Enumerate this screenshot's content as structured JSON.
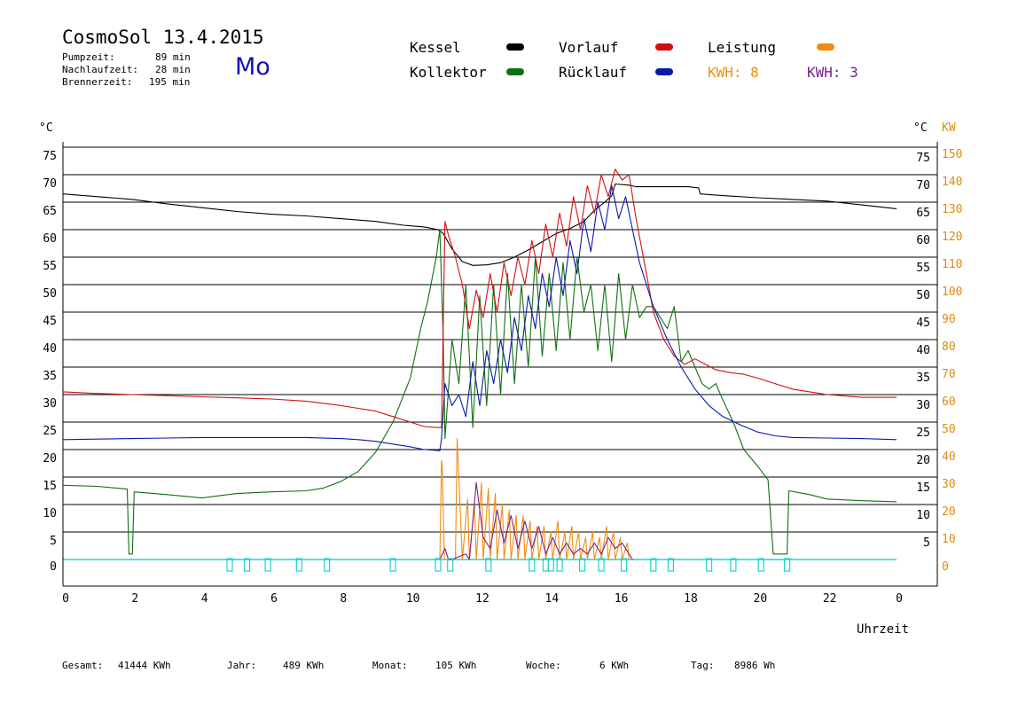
{
  "header": {
    "title": "CosmoSol 13.4.2015",
    "pump_label": "Pumpzeit:",
    "pump_value": "89 min",
    "follow_label": "Nachlaufzeit:",
    "follow_value": "28 min",
    "burner_label": "Brennerzeit:",
    "burner_value": "195 min",
    "weekday": "Mo"
  },
  "legend": {
    "kessel": "Kessel",
    "kollektor": "Kollektor",
    "vorlauf": "Vorlauf",
    "ruecklauf": "Rücklauf",
    "leistung": "Leistung",
    "kwh_orange": "KWH: 8",
    "kwh_purple": "KWH: 3"
  },
  "colors": {
    "kessel": "#000000",
    "kollektor": "#107010",
    "vorlauf": "#d01010",
    "ruecklauf": "#0a1aa8",
    "leistung": "#f08c10",
    "kwh_purple": "#7a2090",
    "baseline": "#20d0d0",
    "kw_axis": "#e08a10"
  },
  "footer": {
    "gesamt_label": "Gesamt:",
    "gesamt_value": "41444 KWh",
    "jahr_label": "Jahr:",
    "jahr_value": "489 KWh",
    "monat_label": "Monat:",
    "monat_value": "105 KWh",
    "woche_label": "Woche:",
    "woche_value": "6 KWh",
    "tag_label": "Tag:",
    "tag_value": "8986 Wh"
  },
  "chart_data": {
    "type": "line",
    "xlabel": "Uhrzeit",
    "ylabel_left": "°C",
    "ylabel_right_temp": "°C",
    "ylabel_right_power": "KW",
    "x_ticks": [
      "0",
      "2",
      "4",
      "6",
      "8",
      "10",
      "12",
      "14",
      "16",
      "18",
      "20",
      "22",
      "0"
    ],
    "xlim": [
      0,
      24
    ],
    "ylim": [
      0,
      80
    ],
    "y_ticks_left": [
      "0",
      "5",
      "10",
      "15",
      "20",
      "25",
      "30",
      "35",
      "40",
      "45",
      "50",
      "55",
      "60",
      "65",
      "70",
      "75"
    ],
    "y_ticks_right_temp": [
      "5",
      "10",
      "15",
      "20",
      "25",
      "30",
      "35",
      "40",
      "45",
      "50",
      "55",
      "60",
      "65",
      "70",
      "75"
    ],
    "y_ticks_right_power": [
      "0",
      "10",
      "20",
      "30",
      "40",
      "50",
      "60",
      "70",
      "80",
      "90",
      "100",
      "110",
      "120",
      "130",
      "140",
      "150"
    ],
    "grid": true,
    "series": [
      {
        "name": "Kessel",
        "x": [
          0,
          1,
          2,
          3,
          4,
          5,
          6,
          7,
          8,
          9,
          9.8,
          10.4,
          10.8,
          10.95,
          11.2,
          11.5,
          11.8,
          12.2,
          12.6,
          13.0,
          13.4,
          13.8,
          14.2,
          14.6,
          15.0,
          15.3,
          15.6,
          15.8,
          15.9,
          16.3,
          16.5,
          17.0,
          17.5,
          18.0,
          18.3,
          18.35,
          19,
          20,
          21,
          22,
          23,
          24
        ],
        "y": [
          66.5,
          66,
          65.5,
          64.7,
          64,
          63.3,
          62.8,
          62.5,
          62,
          61.5,
          60.8,
          60.5,
          60,
          59.3,
          56.5,
          54.2,
          53.5,
          53.6,
          54,
          55,
          56.3,
          57.8,
          59.3,
          60.2,
          61.5,
          63.5,
          65,
          66.2,
          68.3,
          68.1,
          67.8,
          67.8,
          67.8,
          67.8,
          67.6,
          66.5,
          66.2,
          65.8,
          65.5,
          65.2,
          64.5,
          63.8
        ]
      },
      {
        "name": "Kollektor",
        "x": [
          0,
          1,
          1.85,
          1.9,
          2.0,
          2.05,
          3,
          4,
          5,
          6,
          7,
          7.5,
          8,
          8.5,
          9.0,
          9.5,
          10.0,
          10.3,
          10.5,
          10.75,
          10.85,
          10.95,
          11.0,
          11.2,
          11.4,
          11.6,
          11.8,
          12.0,
          12.2,
          12.4,
          12.6,
          12.8,
          13.0,
          13.2,
          13.4,
          13.6,
          13.8,
          14.0,
          14.2,
          14.4,
          14.6,
          14.8,
          15.0,
          15.2,
          15.4,
          15.6,
          15.8,
          16.0,
          16.2,
          16.4,
          16.6,
          16.8,
          17.0,
          17.2,
          17.4,
          17.6,
          17.8,
          18.0,
          18.2,
          18.4,
          18.6,
          18.8,
          19.0,
          19.3,
          19.6,
          20.0,
          20.3,
          20.45,
          20.5,
          20.85,
          20.9,
          21.5,
          22,
          23,
          24
        ],
        "y": [
          13.5,
          13.3,
          12.8,
          1,
          1,
          12.3,
          11.8,
          11.2,
          12.0,
          12.3,
          12.5,
          13.0,
          14.2,
          16.0,
          19.5,
          25,
          33,
          42,
          47,
          55,
          60,
          40,
          22,
          40,
          32,
          50,
          24,
          48,
          28,
          50,
          30,
          52,
          32,
          50,
          35,
          55,
          37,
          52,
          38,
          54,
          40,
          55,
          45,
          50,
          38,
          50,
          36,
          52,
          40,
          50,
          44,
          46,
          46,
          44,
          42,
          46,
          36,
          38,
          35,
          32,
          31,
          32,
          29,
          25,
          20,
          17,
          14.5,
          1,
          1,
          1,
          12.5,
          11.8,
          11.0,
          10.7,
          10.5
        ]
      },
      {
        "name": "Vorlauf",
        "x": [
          0,
          1,
          2,
          3,
          4,
          5,
          6,
          7,
          8,
          8.5,
          9.0,
          9.5,
          10.0,
          10.4,
          10.8,
          10.9,
          11.0,
          11.1,
          11.3,
          11.5,
          11.7,
          11.9,
          12.1,
          12.3,
          12.5,
          12.7,
          12.9,
          13.1,
          13.3,
          13.5,
          13.7,
          13.9,
          14.1,
          14.3,
          14.5,
          14.7,
          14.9,
          15.1,
          15.3,
          15.5,
          15.7,
          15.9,
          16.1,
          16.3,
          16.5,
          16.8,
          17.0,
          17.3,
          17.6,
          17.9,
          18.2,
          18.5,
          18.8,
          19.2,
          19.6,
          20,
          20.5,
          21,
          21.5,
          22,
          23,
          24
        ],
        "y": [
          30.5,
          30.2,
          30,
          29.8,
          29.6,
          29.4,
          29.2,
          28.8,
          28.0,
          27.5,
          27.0,
          26.0,
          25.0,
          24.2,
          24.0,
          24.0,
          61.5,
          59,
          55,
          50,
          42,
          49,
          44,
          52,
          45,
          54,
          48,
          55,
          50,
          58,
          52,
          61,
          55,
          63,
          57,
          66,
          60,
          68,
          63,
          70,
          66,
          71,
          69,
          70,
          62,
          52,
          45,
          40,
          37,
          35.5,
          36.5,
          35.5,
          34.5,
          34,
          33.7,
          33,
          32,
          31,
          30.5,
          30.0,
          29.5,
          29.5
        ]
      },
      {
        "name": "Rücklauf",
        "x": [
          0,
          1,
          2,
          3,
          4,
          5,
          6,
          7,
          8,
          8.5,
          9.0,
          9.5,
          10.0,
          10.4,
          10.85,
          10.9,
          11.0,
          11.2,
          11.4,
          11.6,
          11.8,
          12.0,
          12.2,
          12.4,
          12.6,
          12.8,
          13.0,
          13.2,
          13.4,
          13.6,
          13.8,
          14.0,
          14.2,
          14.4,
          14.6,
          14.8,
          15.0,
          15.2,
          15.4,
          15.6,
          15.8,
          16.0,
          16.2,
          16.4,
          16.6,
          16.8,
          17.0,
          17.4,
          17.8,
          18.2,
          18.6,
          19.0,
          19.5,
          20,
          20.5,
          21,
          22,
          23,
          24
        ],
        "y": [
          21.8,
          21.9,
          22.0,
          22.1,
          22.2,
          22.2,
          22.2,
          22.2,
          22.0,
          21.8,
          21.5,
          21.0,
          20.5,
          20.0,
          19.8,
          22,
          32,
          28,
          30,
          26,
          36,
          28,
          38,
          32,
          40,
          34,
          44,
          38,
          48,
          42,
          52,
          46,
          55,
          48,
          58,
          52,
          62,
          56,
          65,
          60,
          68,
          62,
          66,
          60,
          54,
          50,
          46,
          40,
          35,
          31,
          28,
          26,
          24.5,
          23.2,
          22.5,
          22.2,
          22.1,
          22.0,
          21.8
        ]
      },
      {
        "name": "Leistung",
        "x": [
          10.85,
          10.9,
          10.92,
          10.98,
          11.05,
          11.3,
          11.35,
          11.5,
          11.65,
          11.7,
          11.85,
          11.9,
          12.05,
          12.1,
          12.25,
          12.3,
          12.45,
          12.5,
          12.65,
          12.7,
          12.85,
          12.9,
          13.05,
          13.1,
          13.25,
          13.3,
          13.45,
          13.5,
          13.65,
          13.7,
          13.85,
          13.9,
          14.05,
          14.1,
          14.25,
          14.3,
          14.45,
          14.5,
          14.65,
          14.7,
          14.85,
          14.9,
          15.05,
          15.1,
          15.25,
          15.3,
          15.45,
          15.5,
          15.65,
          15.7,
          15.85,
          15.9,
          16.05,
          16.1,
          16.25,
          16.3,
          16.4
        ],
        "y": [
          0,
          18,
          17,
          0,
          0,
          0,
          22,
          0,
          11,
          0,
          10,
          0,
          14,
          0,
          13,
          0,
          12,
          0,
          10,
          0,
          9,
          0,
          8,
          0,
          8,
          0,
          7,
          0,
          6,
          0,
          6,
          0,
          5,
          0,
          7,
          0,
          5,
          0,
          6,
          0,
          5,
          0,
          4,
          0,
          5,
          0,
          4,
          0,
          6,
          0,
          5,
          0,
          4,
          0,
          3,
          0,
          0
        ]
      },
      {
        "name": "KWH: 3",
        "x": [
          10.85,
          11.0,
          11.1,
          11.2,
          11.6,
          11.7,
          11.9,
          12.1,
          12.3,
          12.5,
          12.7,
          12.9,
          13.1,
          13.3,
          13.5,
          13.7,
          13.9,
          14.1,
          14.3,
          14.5,
          14.7,
          14.9,
          15.1,
          15.3,
          15.5,
          15.7,
          15.9,
          16.1,
          16.3,
          16.4
        ],
        "y": [
          0,
          2,
          0,
          0,
          1,
          0,
          14,
          4,
          2,
          9,
          3,
          8,
          2,
          7,
          2,
          6,
          1,
          4,
          1,
          3,
          1,
          2,
          1,
          3,
          1,
          4,
          2,
          3,
          1,
          0
        ]
      }
    ],
    "pump_markers_x": [
      4.8,
      5.3,
      5.9,
      6.8,
      7.6,
      9.5,
      10.8,
      11.15,
      12.25,
      13.5,
      13.9,
      14.05,
      14.3,
      14.95,
      15.5,
      16.15,
      17.0,
      17.5,
      18.6,
      19.3,
      20.1,
      20.85
    ]
  }
}
